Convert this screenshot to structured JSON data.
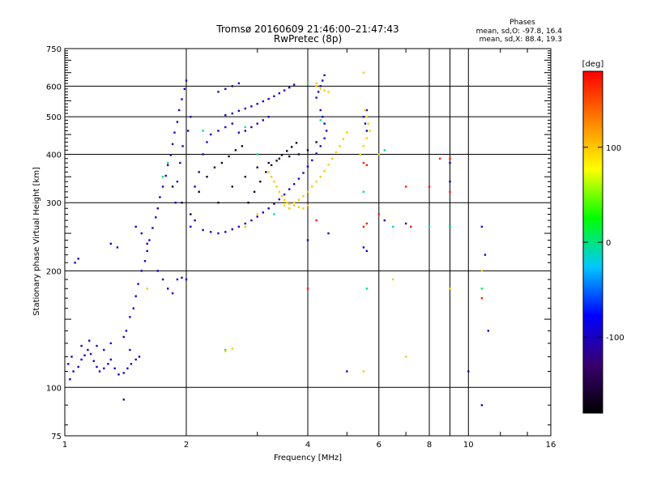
{
  "header": {
    "title_line1": "Tromsø 20160609 21:46:00–21:47:43",
    "title_line2": "RwPretec (8p)",
    "stats_title": "Phases",
    "stats_o": "mean, sd,O: -97.8, 16.4",
    "stats_x": "mean, sd,X:  88.4, 19.3"
  },
  "chart_data": {
    "type": "scatter",
    "xlabel": "Frequency [MHz]",
    "ylabel": "Stationary phase Virtual Height [km]",
    "xscale": "log",
    "yscale": "log",
    "xlim": [
      1,
      16
    ],
    "ylim": [
      75,
      750
    ],
    "x_ticks": [
      1,
      2,
      4,
      6,
      8,
      10,
      16
    ],
    "x_tick_labels": [
      "1",
      "2",
      "4",
      "6",
      "8",
      "10",
      "16"
    ],
    "y_ticks": [
      75,
      100,
      200,
      300,
      400,
      500,
      600,
      750
    ],
    "y_tick_labels": [
      "75",
      "100",
      "200",
      "300",
      "400",
      "500",
      "600",
      "750"
    ],
    "grid": true,
    "colorbar": {
      "label": "[deg]",
      "range": [
        -180,
        180
      ],
      "ticks": [
        100,
        0,
        -100
      ],
      "tick_labels": [
        "100",
        "0",
        "-100"
      ],
      "colors": [
        "#000000",
        "#3a0070",
        "#0000ff",
        "#00c8ff",
        "#00ff00",
        "#ffff00",
        "#ff8000",
        "#ff0000"
      ]
    },
    "series": [
      {
        "color_value": -100,
        "points": [
          [
            1.03,
            105
          ],
          [
            1.05,
            110
          ],
          [
            1.08,
            113
          ],
          [
            1.1,
            118
          ],
          [
            1.12,
            121
          ],
          [
            1.14,
            125
          ],
          [
            1.16,
            122
          ],
          [
            1.18,
            117
          ],
          [
            1.2,
            113
          ],
          [
            1.22,
            110
          ],
          [
            1.25,
            112
          ],
          [
            1.28,
            115
          ],
          [
            1.3,
            118
          ],
          [
            1.33,
            112
          ],
          [
            1.36,
            108
          ],
          [
            1.4,
            109
          ],
          [
            1.43,
            112
          ],
          [
            1.46,
            115
          ],
          [
            1.5,
            118
          ],
          [
            1.53,
            120
          ],
          [
            1.42,
            140
          ],
          [
            1.45,
            152
          ],
          [
            1.48,
            160
          ],
          [
            1.5,
            172
          ],
          [
            1.52,
            185
          ],
          [
            1.55,
            200
          ],
          [
            1.58,
            212
          ],
          [
            1.6,
            225
          ],
          [
            1.62,
            240
          ],
          [
            1.65,
            258
          ],
          [
            1.68,
            275
          ],
          [
            1.7,
            290
          ],
          [
            1.72,
            310
          ],
          [
            1.75,
            330
          ],
          [
            1.78,
            352
          ],
          [
            1.8,
            375
          ],
          [
            1.83,
            398
          ],
          [
            1.85,
            425
          ],
          [
            1.87,
            455
          ],
          [
            1.9,
            485
          ],
          [
            1.92,
            520
          ],
          [
            1.95,
            555
          ],
          [
            1.98,
            590
          ],
          [
            2.0,
            620
          ],
          [
            1.88,
            300
          ],
          [
            1.9,
            340
          ],
          [
            1.93,
            380
          ],
          [
            1.96,
            420
          ],
          [
            2.02,
            460
          ],
          [
            2.05,
            500
          ],
          [
            1.06,
            210
          ],
          [
            1.08,
            215
          ],
          [
            1.3,
            235
          ],
          [
            1.35,
            230
          ],
          [
            1.5,
            260
          ],
          [
            1.55,
            250
          ],
          [
            1.6,
            235
          ],
          [
            1.7,
            200
          ],
          [
            1.75,
            190
          ],
          [
            1.8,
            180
          ],
          [
            1.85,
            175
          ],
          [
            1.9,
            190
          ],
          [
            1.95,
            192
          ],
          [
            2.0,
            190
          ],
          [
            2.05,
            260
          ],
          [
            2.1,
            270
          ],
          [
            2.1,
            330
          ],
          [
            2.15,
            360
          ],
          [
            2.2,
            400
          ],
          [
            2.25,
            430
          ],
          [
            2.3,
            450
          ],
          [
            2.4,
            460
          ],
          [
            2.5,
            470
          ],
          [
            2.6,
            480
          ],
          [
            2.7,
            455
          ],
          [
            2.8,
            460
          ],
          [
            2.9,
            470
          ],
          [
            3.0,
            480
          ],
          [
            3.1,
            490
          ],
          [
            3.2,
            500
          ],
          [
            2.5,
            505
          ],
          [
            2.6,
            510
          ],
          [
            2.7,
            518
          ],
          [
            2.8,
            525
          ],
          [
            2.9,
            532
          ],
          [
            3.0,
            540
          ],
          [
            3.1,
            548
          ],
          [
            3.2,
            556
          ],
          [
            3.3,
            565
          ],
          [
            3.4,
            575
          ],
          [
            3.5,
            585
          ],
          [
            3.6,
            595
          ],
          [
            3.7,
            605
          ],
          [
            2.4,
            580
          ],
          [
            2.5,
            590
          ],
          [
            2.6,
            600
          ],
          [
            2.7,
            610
          ],
          [
            2.2,
            255
          ],
          [
            2.3,
            252
          ],
          [
            2.4,
            250
          ],
          [
            2.5,
            252
          ],
          [
            2.6,
            256
          ],
          [
            2.7,
            260
          ],
          [
            2.8,
            265
          ],
          [
            2.9,
            270
          ],
          [
            3.0,
            276
          ],
          [
            3.1,
            283
          ],
          [
            3.2,
            290
          ],
          [
            3.3,
            298
          ],
          [
            3.4,
            306
          ],
          [
            3.5,
            315
          ],
          [
            3.6,
            325
          ],
          [
            3.7,
            335
          ],
          [
            3.8,
            346
          ],
          [
            3.9,
            358
          ],
          [
            4.0,
            372
          ],
          [
            4.1,
            386
          ],
          [
            4.2,
            402
          ],
          [
            4.3,
            420
          ],
          [
            4.4,
            440
          ],
          [
            4.2,
            560
          ],
          [
            4.25,
            580
          ],
          [
            4.3,
            600
          ],
          [
            4.35,
            620
          ],
          [
            4.4,
            640
          ],
          [
            4.3,
            520
          ],
          [
            4.35,
            500
          ],
          [
            4.4,
            480
          ],
          [
            4.45,
            460
          ],
          [
            5.5,
            500
          ],
          [
            5.55,
            480
          ],
          [
            5.6,
            460
          ],
          [
            5.6,
            520
          ],
          [
            5.5,
            230
          ],
          [
            5.6,
            225
          ],
          [
            4.0,
            240
          ],
          [
            4.5,
            250
          ],
          [
            6.2,
            270
          ],
          [
            7.0,
            265
          ],
          [
            9.0,
            260
          ],
          [
            10.8,
            260
          ],
          [
            11.0,
            220
          ],
          [
            11.2,
            140
          ],
          [
            10.0,
            110
          ],
          [
            9.0,
            340
          ],
          [
            9.0,
            380
          ],
          [
            10.8,
            90
          ],
          [
            1.4,
            93
          ],
          [
            5.0,
            110
          ],
          [
            1.02,
            115
          ],
          [
            1.04,
            120
          ],
          [
            1.1,
            128
          ],
          [
            1.15,
            132
          ],
          [
            1.2,
            128
          ],
          [
            1.25,
            125
          ],
          [
            1.3,
            130
          ],
          [
            1.4,
            135
          ],
          [
            1.45,
            125
          ]
        ]
      },
      {
        "color_value": -160,
        "points": [
          [
            2.4,
            300
          ],
          [
            2.6,
            330
          ],
          [
            2.8,
            350
          ],
          [
            3.0,
            370
          ],
          [
            3.2,
            380
          ],
          [
            3.4,
            390
          ],
          [
            3.6,
            395
          ],
          [
            3.8,
            400
          ],
          [
            4.0,
            410
          ],
          [
            4.2,
            430
          ],
          [
            1.85,
            330
          ],
          [
            1.95,
            300
          ],
          [
            2.05,
            280
          ],
          [
            2.15,
            320
          ],
          [
            2.25,
            350
          ],
          [
            2.35,
            370
          ],
          [
            2.45,
            380
          ],
          [
            2.55,
            395
          ],
          [
            2.65,
            410
          ],
          [
            2.75,
            420
          ],
          [
            2.85,
            300
          ],
          [
            2.95,
            320
          ],
          [
            3.05,
            340
          ],
          [
            3.15,
            360
          ],
          [
            3.25,
            375
          ],
          [
            3.35,
            385
          ],
          [
            3.45,
            398
          ],
          [
            3.55,
            408
          ],
          [
            3.65,
            418
          ],
          [
            3.75,
            428
          ]
        ]
      },
      {
        "color_value": 0,
        "points": [
          [
            2.5,
            125
          ],
          [
            1.75,
            350
          ],
          [
            1.8,
            380
          ],
          [
            2.2,
            460
          ],
          [
            2.8,
            470
          ],
          [
            3.0,
            400
          ],
          [
            4.0,
            610
          ],
          [
            4.3,
            490
          ],
          [
            5.5,
            320
          ],
          [
            5.6,
            180
          ],
          [
            6.2,
            410
          ],
          [
            6.5,
            260
          ],
          [
            8.0,
            260
          ],
          [
            9.0,
            260
          ],
          [
            10.8,
            180
          ],
          [
            3.3,
            280
          ]
        ]
      },
      {
        "color_value": 100,
        "points": [
          [
            3.2,
            360
          ],
          [
            3.25,
            350
          ],
          [
            3.3,
            340
          ],
          [
            3.35,
            330
          ],
          [
            3.4,
            320
          ],
          [
            3.45,
            312
          ],
          [
            3.5,
            305
          ],
          [
            3.55,
            300
          ],
          [
            3.6,
            298
          ],
          [
            3.7,
            300
          ],
          [
            3.8,
            305
          ],
          [
            3.9,
            312
          ],
          [
            4.0,
            320
          ],
          [
            4.1,
            330
          ],
          [
            4.2,
            340
          ],
          [
            4.3,
            350
          ],
          [
            4.4,
            362
          ],
          [
            4.5,
            376
          ],
          [
            4.6,
            390
          ],
          [
            4.7,
            405
          ],
          [
            4.8,
            420
          ],
          [
            4.9,
            438
          ],
          [
            5.0,
            455
          ],
          [
            4.2,
            600
          ],
          [
            4.3,
            590
          ],
          [
            4.4,
            585
          ],
          [
            4.5,
            580
          ],
          [
            5.4,
            400
          ],
          [
            5.5,
            420
          ],
          [
            5.6,
            440
          ],
          [
            5.7,
            460
          ],
          [
            5.65,
            480
          ],
          [
            5.6,
            500
          ],
          [
            5.55,
            520
          ],
          [
            5.5,
            650
          ],
          [
            6.0,
            400
          ],
          [
            2.5,
            124
          ],
          [
            2.6,
            126
          ],
          [
            2.8,
            260
          ],
          [
            3.0,
            280
          ],
          [
            3.5,
            295
          ],
          [
            3.6,
            290
          ],
          [
            3.7,
            295
          ],
          [
            3.8,
            292
          ],
          [
            3.9,
            290
          ],
          [
            4.0,
            295
          ],
          [
            9.0,
            180
          ],
          [
            9.0,
            390
          ],
          [
            10.8,
            200
          ],
          [
            5.5,
            110
          ],
          [
            7.0,
            120
          ],
          [
            6.5,
            190
          ],
          [
            1.6,
            180
          ],
          [
            4.2,
            610
          ]
        ]
      },
      {
        "color_value": 170,
        "points": [
          [
            4.0,
            180
          ],
          [
            9.0,
            390
          ],
          [
            5.5,
            260
          ],
          [
            5.6,
            265
          ],
          [
            6.0,
            280
          ],
          [
            7.0,
            330
          ],
          [
            8.0,
            330
          ],
          [
            9.0,
            320
          ],
          [
            10.8,
            170
          ],
          [
            4.2,
            270
          ],
          [
            7.2,
            260
          ],
          [
            5.5,
            380
          ],
          [
            5.6,
            375
          ],
          [
            8.5,
            390
          ]
        ]
      }
    ]
  }
}
